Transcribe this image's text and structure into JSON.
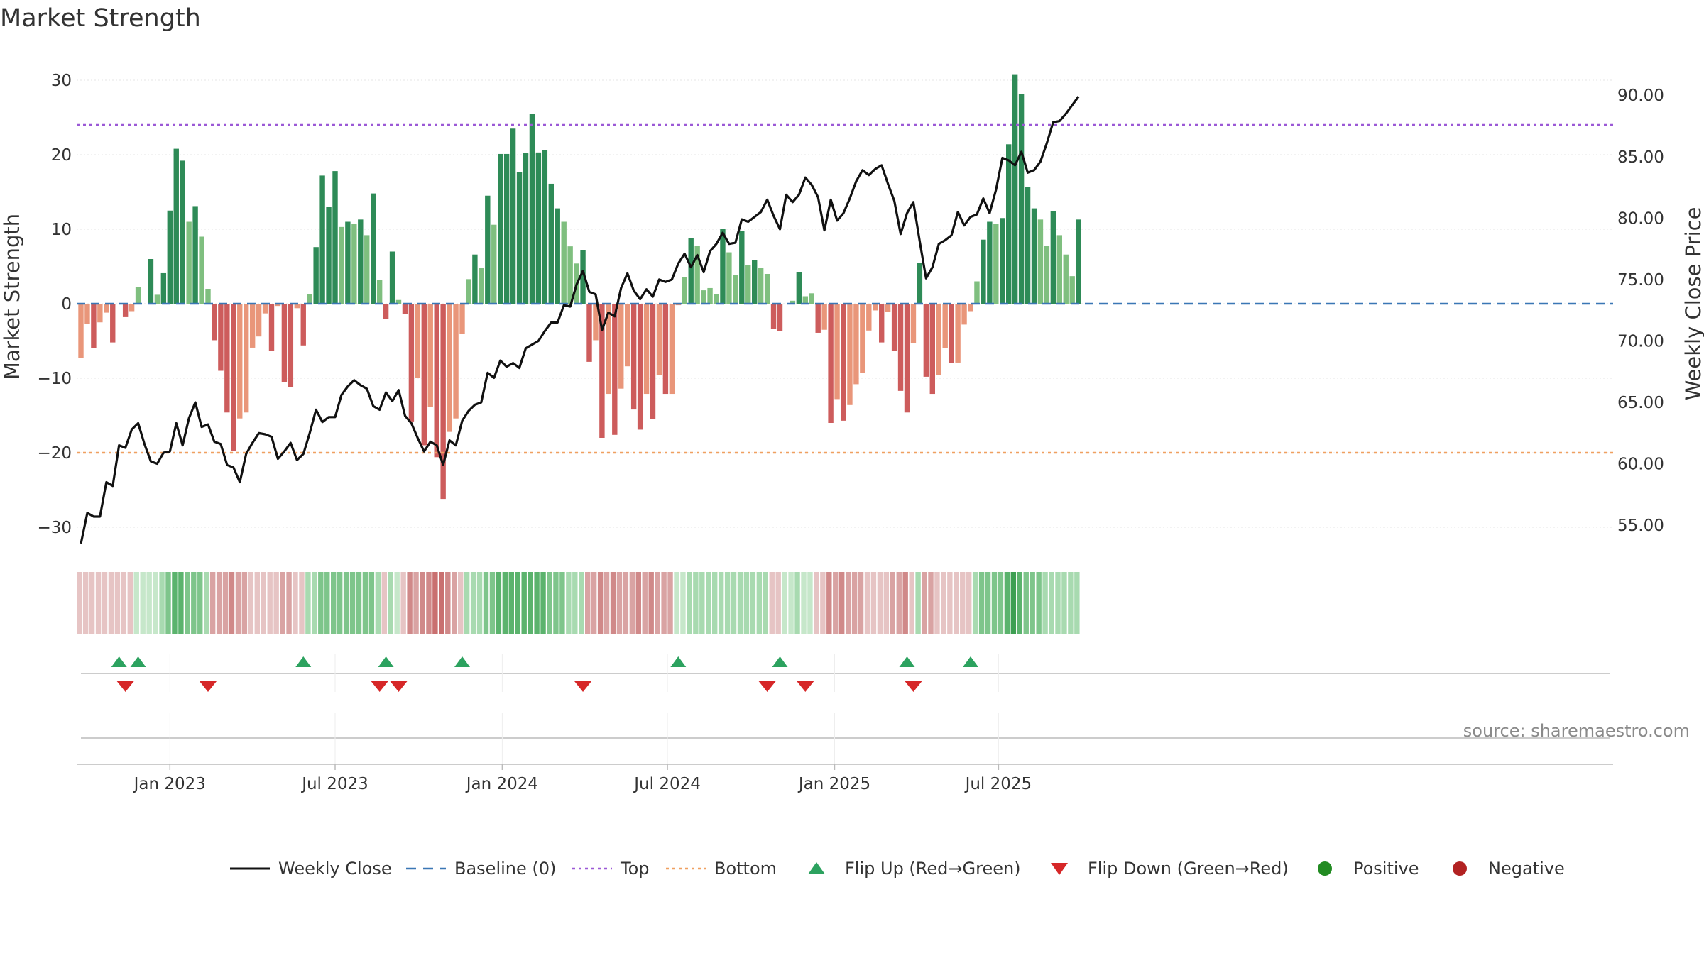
{
  "chart_data": {
    "type": "bar",
    "title": "Market Strength",
    "ylabel": "Market Strength",
    "y2label": "Weekly Close Price",
    "ylim": [
      -33,
      33
    ],
    "y2lim": [
      52.3,
      91.4
    ],
    "yticks": [
      "30",
      "20",
      "10",
      "0",
      "−10",
      "−20",
      "−30"
    ],
    "yticks_values": [
      30,
      20,
      10,
      0,
      -10,
      -20,
      -30
    ],
    "y2ticks": [
      "90.00",
      "85.00",
      "80.00",
      "75.00",
      "70.00",
      "65.00",
      "60.00",
      "55.00"
    ],
    "y2ticks_values": [
      90,
      85,
      80,
      75,
      70,
      65,
      60,
      55
    ],
    "xticks": [
      "Jan 2023",
      "Jul 2023",
      "Jan 2024",
      "Jul 2024",
      "Jan 2025",
      "Jul 2025"
    ],
    "xticks_weeks": [
      14,
      40,
      66.3,
      92.3,
      118.6,
      144.4
    ],
    "top_level": 24,
    "bottom_level": -20,
    "grid": true,
    "legend_position": "bottom",
    "source": "source: sharemaestro.com",
    "strength": [
      -7.3,
      -2.7,
      -6,
      -2.5,
      -1.2,
      -5.2,
      0,
      -1.8,
      -1,
      2.2,
      0,
      6,
      1.2,
      4.1,
      12.5,
      20.8,
      19.2,
      11,
      13.1,
      9,
      2,
      -4.9,
      -9,
      -14.6,
      -19.8,
      -15.4,
      -14.6,
      -5.9,
      -4.4,
      -1.3,
      -6.3,
      -0.3,
      -10.5,
      -11.2,
      -0.6,
      -5.6,
      1.3,
      7.6,
      17.2,
      13,
      17.8,
      10.3,
      11,
      10.7,
      11.3,
      9.2,
      14.8,
      3.2,
      -2,
      7,
      0.5,
      -1.4,
      -15.8,
      -10,
      -19,
      -13.9,
      -20.6,
      -26.2,
      -17.2,
      -15.4,
      -4,
      3.3,
      6.6,
      4.8,
      14.5,
      10.6,
      20.1,
      20.1,
      23.5,
      17.7,
      20.2,
      25.5,
      20.3,
      20.6,
      16.1,
      12.8,
      11,
      7.7,
      5.4,
      7.2,
      -7.8,
      -4.9,
      -18,
      -12.1,
      -17.6,
      -11.4,
      -8.4,
      -14.2,
      -16.9,
      -12.1,
      -15.5,
      -9.6,
      -12.1,
      -12.1,
      -0.2,
      3.6,
      8.8,
      7.8,
      1.8,
      2.1,
      1.3,
      10,
      6.9,
      3.9,
      9.8,
      5.2,
      5.9,
      4.8,
      4,
      -3.4,
      -3.7,
      0,
      0.4,
      4.2,
      1,
      1.4,
      -3.9,
      -3.5,
      -16,
      -12.8,
      -15.7,
      -13.6,
      -10.8,
      -9.3,
      -3.6,
      -0.9,
      -5.2,
      -1.1,
      -6.3,
      -11.7,
      -14.6,
      -5.3,
      5.5,
      -9.8,
      -12.1,
      -9.6,
      -6,
      -8,
      -7.9,
      -2.8,
      -1,
      3,
      8.6,
      11,
      10.7,
      11.5,
      21.4,
      30.8,
      28.1,
      15.7,
      12.8,
      11.3,
      7.8,
      12.4,
      9.2,
      6.6,
      3.7,
      11.3
    ],
    "weekly_close": [
      53.5,
      56,
      55.7,
      55.7,
      58.5,
      58.2,
      61.5,
      61.3,
      62.8,
      63.3,
      61.6,
      60.2,
      60,
      60.9,
      61,
      63.3,
      61.5,
      63.7,
      65,
      63,
      63.2,
      61.8,
      61.6,
      59.9,
      59.7,
      58.5,
      60.8,
      61.7,
      62.5,
      62.4,
      62.2,
      60.4,
      61,
      61.7,
      60.3,
      60.8,
      62.5,
      64.4,
      63.4,
      63.8,
      63.8,
      65.6,
      66.3,
      66.8,
      66.4,
      66.1,
      64.7,
      64.4,
      65.8,
      65.1,
      66,
      63.9,
      63.3,
      62.1,
      61,
      61.8,
      61.5,
      59.9,
      61.9,
      61.5,
      63.5,
      64.3,
      64.8,
      65,
      67.4,
      67,
      68.4,
      67.9,
      68.2,
      67.8,
      69.4,
      69.7,
      70,
      70.8,
      71.5,
      71.5,
      72.9,
      72.8,
      74.6,
      75.7,
      74,
      73.8,
      70.9,
      72.3,
      72,
      74.3,
      75.5,
      74.1,
      73.4,
      74.2,
      73.6,
      75,
      74.8,
      75,
      76.3,
      77.1,
      76,
      77,
      75.6,
      77.3,
      77.9,
      78.8,
      77.9,
      78,
      79.9,
      79.7,
      80.1,
      80.5,
      81.5,
      80.2,
      79.1,
      81.9,
      81.3,
      81.9,
      83.3,
      82.7,
      81.7,
      79,
      81.5,
      79.8,
      80.4,
      81.6,
      83,
      83.9,
      83.5,
      84,
      84.3,
      82.8,
      81.4,
      78.7,
      80.4,
      81.3,
      78.1,
      75.1,
      76,
      77.9,
      78.2,
      78.6,
      80.5,
      79.4,
      80.1,
      80.3,
      81.6,
      80.4,
      82.3,
      84.9,
      84.7,
      84.3,
      85.4,
      83.7,
      83.9,
      84.6,
      86.1,
      87.8,
      87.9,
      88.5,
      89.2,
      89.9
    ],
    "trend_strip": [
      "#e6c4c4",
      "#e6c4c4",
      "#e6c4c4",
      "#e6c4c4",
      "#e6c4c4",
      "#e6c4c4",
      "#e6c4c4",
      "#e6c4c4",
      "#e6c4c4",
      "#c6e7ca",
      "#c6e7ca",
      "#c6e7ca",
      "#c6e7ca",
      "#a8dab0",
      "#7ec58b",
      "#5bb36d",
      "#5bb36d",
      "#7ec58b",
      "#7ec58b",
      "#7ec58b",
      "#a8dab0",
      "#d9a3a3",
      "#d9a3a3",
      "#d9a3a3",
      "#d08989",
      "#d9a3a3",
      "#d9a3a3",
      "#e6c4c4",
      "#e6c4c4",
      "#e6c4c4",
      "#e6c4c4",
      "#e6c4c4",
      "#d9a3a3",
      "#d9a3a3",
      "#e6c4c4",
      "#e6c4c4",
      "#a8dab0",
      "#a8dab0",
      "#7ec58b",
      "#7ec58b",
      "#7ec58b",
      "#7ec58b",
      "#7ec58b",
      "#7ec58b",
      "#7ec58b",
      "#7ec58b",
      "#7ec58b",
      "#a8dab0",
      "#e6c4c4",
      "#a8dab0",
      "#c6e7ca",
      "#e6c4c4",
      "#d08989",
      "#d9a3a3",
      "#d08989",
      "#d08989",
      "#c97070",
      "#c97070",
      "#d08989",
      "#d9a3a3",
      "#e6c4c4",
      "#a8dab0",
      "#a8dab0",
      "#a8dab0",
      "#7ec58b",
      "#7ec58b",
      "#5bb36d",
      "#5bb36d",
      "#5bb36d",
      "#5bb36d",
      "#5bb36d",
      "#5bb36d",
      "#5bb36d",
      "#5bb36d",
      "#7ec58b",
      "#7ec58b",
      "#7ec58b",
      "#a8dab0",
      "#a8dab0",
      "#a8dab0",
      "#d9a3a3",
      "#d9a3a3",
      "#d08989",
      "#d9a3a3",
      "#d08989",
      "#d9a3a3",
      "#d9a3a3",
      "#d9a3a3",
      "#d08989",
      "#d9a3a3",
      "#d08989",
      "#d9a3a3",
      "#d9a3a3",
      "#d9a3a3",
      "#c6e7ca",
      "#c6e7ca",
      "#a8dab0",
      "#a8dab0",
      "#a8dab0",
      "#a8dab0",
      "#a8dab0",
      "#a8dab0",
      "#a8dab0",
      "#a8dab0",
      "#a8dab0",
      "#a8dab0",
      "#a8dab0",
      "#a8dab0",
      "#a8dab0",
      "#e6c4c4",
      "#e6c4c4",
      "#c6e7ca",
      "#c6e7ca",
      "#a8dab0",
      "#c6e7ca",
      "#c6e7ca",
      "#e6c4c4",
      "#e6c4c4",
      "#d08989",
      "#d9a3a3",
      "#d08989",
      "#d9a3a3",
      "#d9a3a3",
      "#d9a3a3",
      "#e6c4c4",
      "#e6c4c4",
      "#e6c4c4",
      "#e6c4c4",
      "#d9a3a3",
      "#d9a3a3",
      "#d08989",
      "#e6c4c4",
      "#a8dab0",
      "#d9a3a3",
      "#d9a3a3",
      "#e6c4c4",
      "#e6c4c4",
      "#e6c4c4",
      "#e6c4c4",
      "#e6c4c4",
      "#e6c4c4",
      "#a8dab0",
      "#7ec58b",
      "#7ec58b",
      "#7ec58b",
      "#7ec58b",
      "#5bb36d",
      "#3d9f52",
      "#5bb36d",
      "#7ec58b",
      "#7ec58b",
      "#7ec58b",
      "#a8dab0",
      "#a8dab0",
      "#a8dab0",
      "#a8dab0",
      "#a8dab0",
      "#a8dab0"
    ],
    "flip_up_weeks": [
      6,
      9,
      35,
      48,
      60,
      94,
      110,
      130,
      140
    ],
    "flip_down_weeks": [
      7,
      20,
      47,
      50,
      79,
      108,
      114,
      131
    ],
    "colors": {
      "strong_green": "#2e8b57",
      "light_green": "#7fbf7f",
      "strong_red": "#cd5c5c",
      "light_red": "#e9967a",
      "line": "#111111",
      "baseline": "#3a77b5",
      "top": "#9b59d6",
      "bottom": "#f0a060",
      "flip_up": "#2ca25f",
      "flip_down": "#d62728",
      "positive": "#228b22",
      "negative": "#b22222"
    },
    "legend": [
      {
        "label": "Weekly Close",
        "kind": "line"
      },
      {
        "label": "Baseline (0)",
        "kind": "dash"
      },
      {
        "label": "Top",
        "kind": "dot-purple"
      },
      {
        "label": "Bottom",
        "kind": "dot-orange"
      },
      {
        "label": "Flip Up (Red→Green)",
        "kind": "tri-up"
      },
      {
        "label": "Flip Down (Green→Red)",
        "kind": "tri-down"
      },
      {
        "label": "Positive",
        "kind": "circle-green"
      },
      {
        "label": "Negative",
        "kind": "circle-red"
      }
    ]
  }
}
